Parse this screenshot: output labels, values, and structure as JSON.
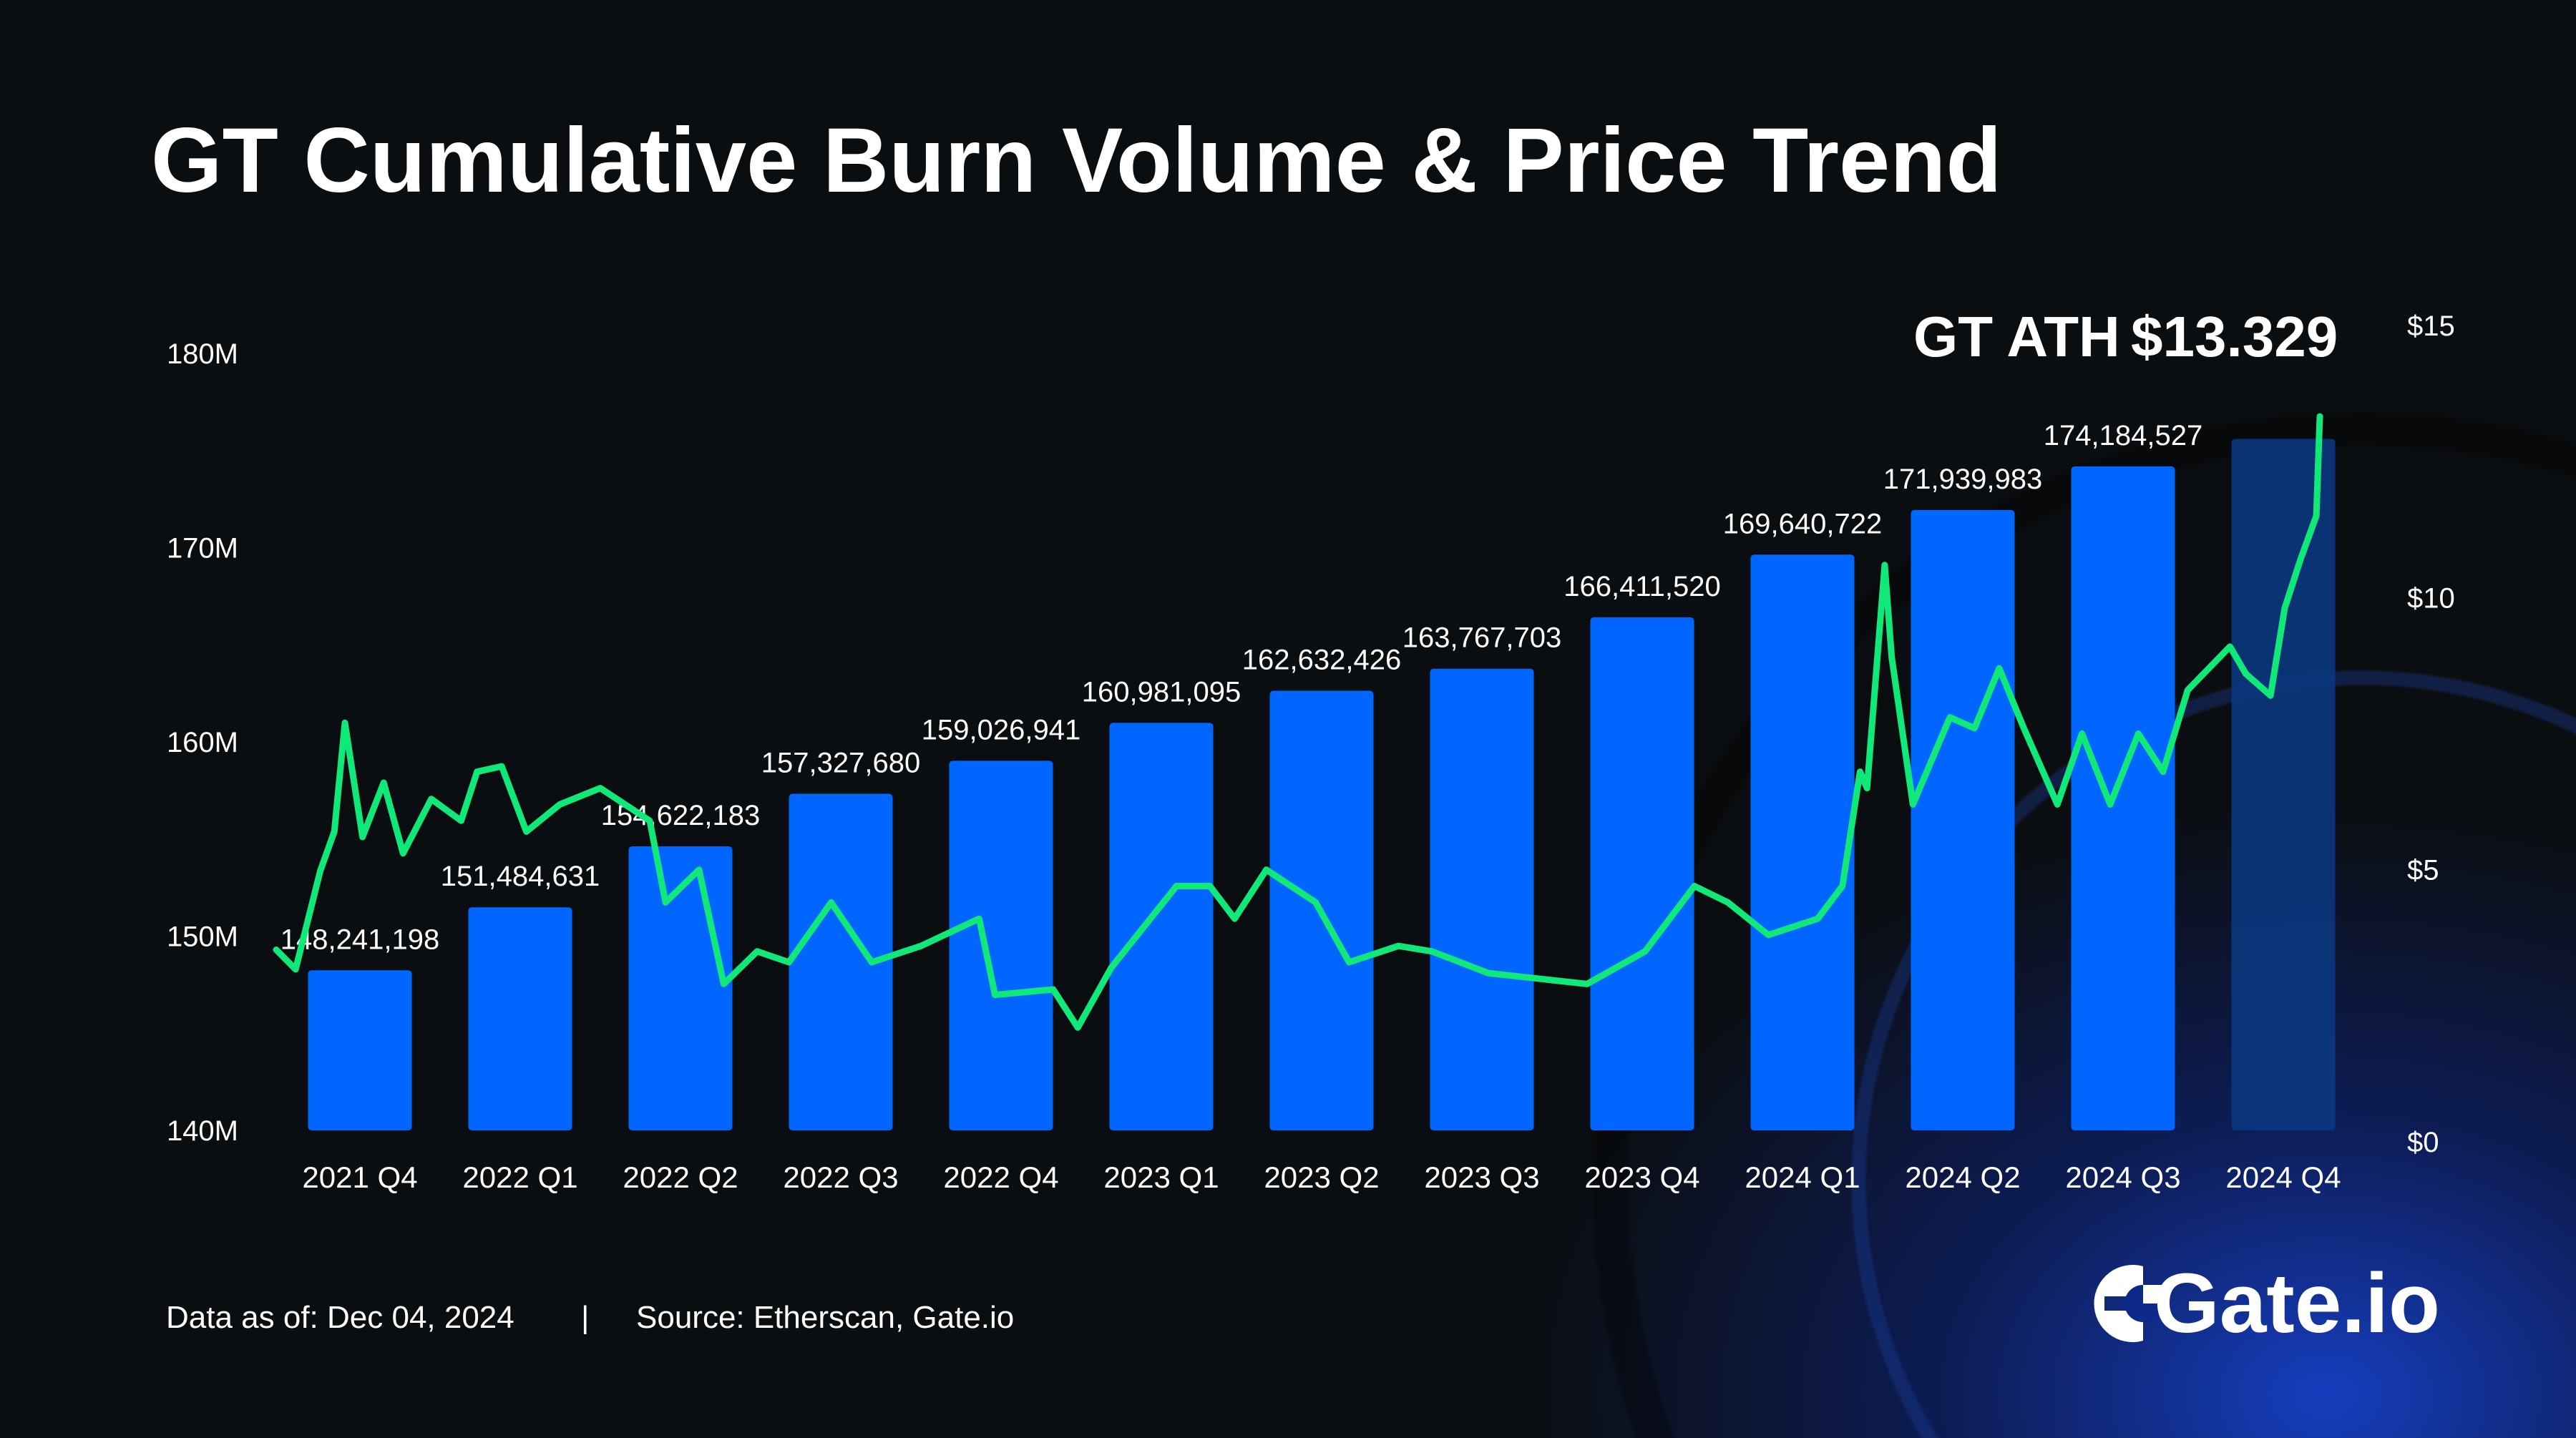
{
  "title": "GT Cumulative Burn Volume & Price Trend",
  "ath": {
    "label": "GT ATH",
    "value": "$13.329"
  },
  "footer": {
    "date": "Data as of: Dec 04, 2024",
    "divider": "|",
    "source": "Source: Etherscan, Gate.io"
  },
  "logo": {
    "text": "Gate.io"
  },
  "colors": {
    "background": "#0b0e11",
    "bar": "#0066ff",
    "bar_partial": "#0a3a85",
    "price_line": "#10e87a",
    "text": "#ffffff"
  },
  "chart_data": {
    "type": "bar+line",
    "title": "GT Cumulative Burn Volume & Price Trend",
    "categories": [
      "2021 Q4",
      "2022 Q1",
      "2022 Q2",
      "2022 Q3",
      "2022 Q4",
      "2023 Q1",
      "2023 Q2",
      "2023 Q3",
      "2023 Q4",
      "2024 Q1",
      "2024 Q2",
      "2024 Q3",
      "2024 Q4"
    ],
    "bars": {
      "values": [
        148241198,
        151484631,
        154622183,
        157327680,
        159026941,
        160981095,
        162632426,
        163767703,
        166411520,
        169640722,
        171939983,
        174184527,
        175600000
      ],
      "labels": [
        "148,241,198",
        "151,484,631",
        "154,622,183",
        "157,327,680",
        "159,026,941",
        "160,981,095",
        "162,632,426",
        "163,767,703",
        "166,411,520",
        "169,640,722",
        "171,939,983",
        "174,184,527",
        ""
      ],
      "partial_last": true
    },
    "left_axis": {
      "ticks": [
        "140M",
        "150M",
        "160M",
        "170M",
        "180M"
      ],
      "values": [
        140000000,
        150000000,
        160000000,
        170000000,
        180000000
      ],
      "range": [
        140000000,
        180000000
      ]
    },
    "right_axis": {
      "ticks": [
        "$0",
        "$5",
        "$10",
        "$15"
      ],
      "values": [
        0,
        5,
        10,
        15
      ],
      "range": [
        0,
        15
      ]
    },
    "price_series": {
      "dates": [
        "2021-10-01",
        "2021-10-12",
        "2021-10-26",
        "2021-11-03",
        "2021-11-09",
        "2021-11-19",
        "2021-12-01",
        "2021-12-12",
        "2021-12-28",
        "2022-01-14",
        "2022-01-23",
        "2022-02-06",
        "2022-02-20",
        "2022-03-11",
        "2022-04-03",
        "2022-05-01",
        "2022-05-10",
        "2022-05-29",
        "2022-06-12",
        "2022-07-01",
        "2022-07-19",
        "2022-08-12",
        "2022-09-04",
        "2022-10-02",
        "2022-11-04",
        "2022-11-13",
        "2022-12-16",
        "2022-12-30",
        "2023-01-18",
        "2023-02-24",
        "2023-03-15",
        "2023-03-29",
        "2023-04-16",
        "2023-05-14",
        "2023-06-02",
        "2023-06-30",
        "2023-07-19",
        "2023-08-20",
        "2023-10-15",
        "2023-11-17",
        "2023-12-15",
        "2024-01-03",
        "2024-01-26",
        "2024-02-23",
        "2024-03-08",
        "2024-03-18",
        "2024-03-22",
        "2024-04-01",
        "2024-04-05",
        "2024-04-17",
        "2024-05-08",
        "2024-05-22",
        "2024-06-05",
        "2024-06-19",
        "2024-07-08",
        "2024-07-22",
        "2024-08-07",
        "2024-08-23",
        "2024-09-06",
        "2024-09-20",
        "2024-10-14",
        "2024-10-23",
        "2024-11-06",
        "2024-11-14",
        "2024-11-23",
        "2024-12-02",
        "2024-12-04"
      ],
      "values": [
        3.53,
        3.17,
        4.98,
        5.7,
        7.7,
        5.6,
        6.6,
        5.3,
        6.3,
        5.9,
        6.8,
        6.9,
        5.7,
        6.2,
        6.5,
        5.9,
        4.4,
        5.0,
        2.9,
        3.5,
        3.3,
        4.4,
        3.3,
        3.6,
        4.1,
        2.7,
        2.8,
        2.1,
        3.2,
        4.7,
        4.7,
        4.1,
        5.0,
        4.4,
        3.3,
        3.6,
        3.5,
        3.1,
        2.9,
        3.5,
        4.7,
        4.4,
        3.8,
        4.1,
        4.7,
        6.8,
        6.5,
        10.6,
        8.9,
        6.2,
        7.8,
        7.6,
        8.7,
        7.6,
        6.2,
        7.5,
        6.2,
        7.5,
        6.8,
        8.3,
        9.1,
        8.6,
        8.2,
        9.8,
        10.7,
        11.5,
        13.329
      ]
    },
    "legend": "none",
    "grid": false
  }
}
